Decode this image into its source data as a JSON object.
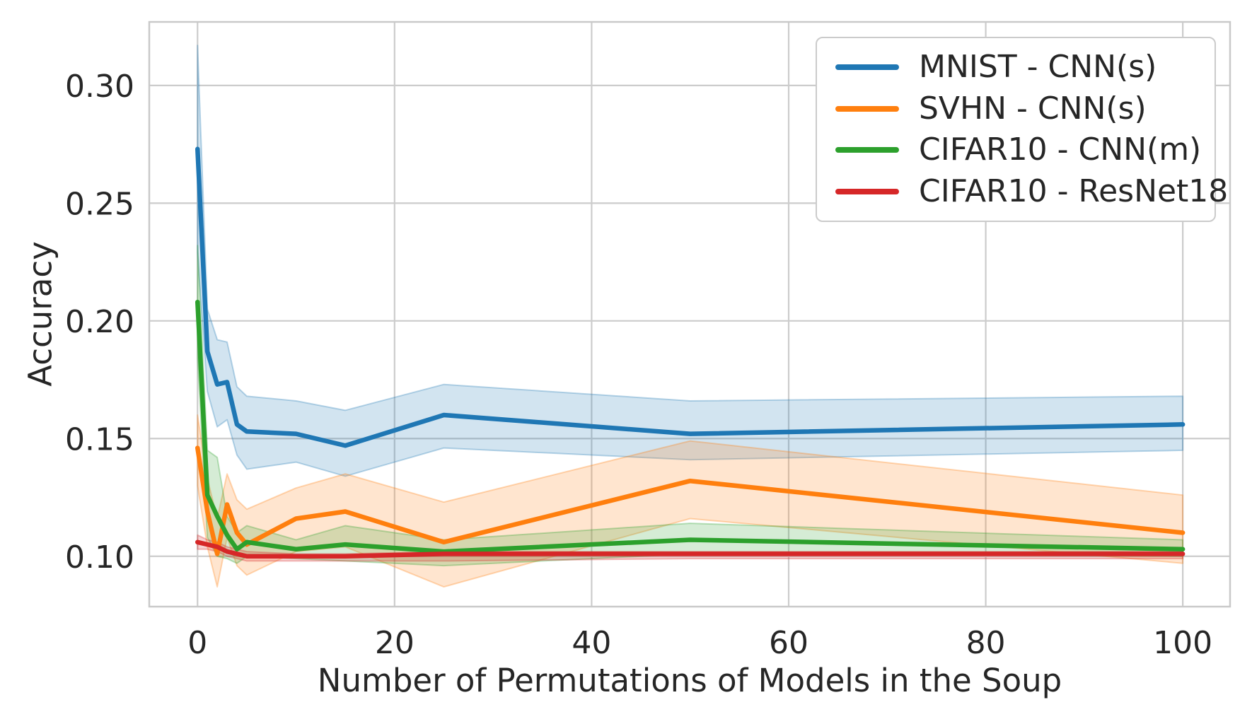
{
  "chart_data": {
    "type": "line",
    "title": "",
    "xlabel": "Number of Permutations of Models in the Soup",
    "ylabel": "Accuracy",
    "grid": true,
    "legend_position": "upper right",
    "xlim": [
      -4.9,
      104.8
    ],
    "ylim": [
      0.0786,
      0.327
    ],
    "xticks": [
      {
        "v": 0,
        "label": "0"
      },
      {
        "v": 20,
        "label": "20"
      },
      {
        "v": 40,
        "label": "40"
      },
      {
        "v": 60,
        "label": "60"
      },
      {
        "v": 80,
        "label": "80"
      },
      {
        "v": 100,
        "label": "100"
      }
    ],
    "yticks": [
      {
        "v": 0.1,
        "label": "0.10"
      },
      {
        "v": 0.15,
        "label": "0.15"
      },
      {
        "v": 0.2,
        "label": "0.20"
      },
      {
        "v": 0.25,
        "label": "0.25"
      },
      {
        "v": 0.3,
        "label": "0.30"
      }
    ],
    "x": [
      0,
      1,
      2,
      3,
      4,
      5,
      10,
      15,
      25,
      50,
      100
    ],
    "series": [
      {
        "name": "MNIST - CNN(s)",
        "color": "#1f77b4",
        "values": [
          0.273,
          0.187,
          0.173,
          0.174,
          0.156,
          0.153,
          0.152,
          0.147,
          0.16,
          0.152,
          0.156
        ],
        "band_upper": [
          0.317,
          0.205,
          0.192,
          0.191,
          0.172,
          0.168,
          0.166,
          0.162,
          0.173,
          0.166,
          0.168
        ],
        "band_lower": [
          0.229,
          0.17,
          0.155,
          0.158,
          0.143,
          0.137,
          0.14,
          0.134,
          0.146,
          0.141,
          0.145
        ]
      },
      {
        "name": "SVHN - CNN(s)",
        "color": "#ff7f0e",
        "values": [
          0.146,
          0.119,
          0.101,
          0.122,
          0.11,
          0.105,
          0.116,
          0.119,
          0.106,
          0.132,
          0.11
        ],
        "band_upper": [
          0.16,
          0.133,
          0.116,
          0.135,
          0.124,
          0.12,
          0.129,
          0.135,
          0.123,
          0.149,
          0.126
        ],
        "band_lower": [
          0.13,
          0.104,
          0.087,
          0.108,
          0.096,
          0.092,
          0.102,
          0.104,
          0.087,
          0.116,
          0.097
        ]
      },
      {
        "name": "CIFAR10 - CNN(m)",
        "color": "#2ca02c",
        "values": [
          0.208,
          0.126,
          0.117,
          0.109,
          0.103,
          0.106,
          0.103,
          0.105,
          0.102,
          0.107,
          0.103
        ],
        "band_upper": [
          0.232,
          0.145,
          0.142,
          0.117,
          0.11,
          0.113,
          0.107,
          0.113,
          0.107,
          0.114,
          0.107
        ],
        "band_lower": [
          0.184,
          0.108,
          0.1,
          0.099,
          0.097,
          0.1,
          0.099,
          0.098,
          0.096,
          0.101,
          0.1
        ]
      },
      {
        "name": "CIFAR10 - ResNet18",
        "color": "#d62728",
        "values": [
          0.106,
          0.105,
          0.104,
          0.102,
          0.101,
          0.1,
          0.1,
          0.1,
          0.101,
          0.101,
          0.101
        ],
        "band_upper": [
          0.109,
          0.107,
          0.106,
          0.104,
          0.103,
          0.102,
          0.101,
          0.101,
          0.102,
          0.102,
          0.102
        ],
        "band_lower": [
          0.103,
          0.103,
          0.102,
          0.1,
          0.099,
          0.098,
          0.098,
          0.098,
          0.098,
          0.099,
          0.099
        ]
      }
    ],
    "style": {
      "grid_color": "#cccccc",
      "border_color": "#c9c9c9",
      "text_color": "#262626",
      "band_opacity": "0.2"
    }
  }
}
